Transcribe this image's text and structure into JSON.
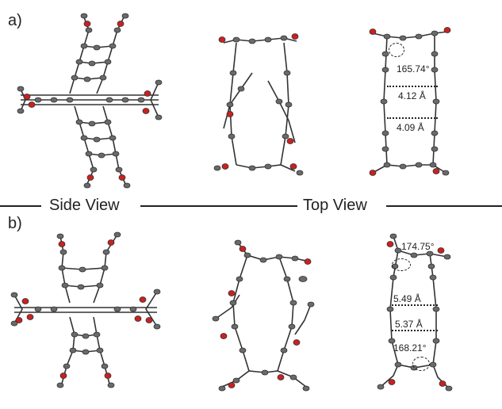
{
  "panels": {
    "a": {
      "label": "a)"
    },
    "b": {
      "label": "b)"
    }
  },
  "views": {
    "side": "Side View",
    "top": "Top View"
  },
  "measurements": {
    "a": {
      "angle": "165.74°",
      "distance_1": "4.12 Å",
      "distance_2": "4.09 Å"
    },
    "b": {
      "angle_top": "174.75°",
      "distance_1": "5.49 Å",
      "distance_2": "5.37 Å",
      "angle_bottom": "168.21°"
    }
  },
  "colors": {
    "carbon": "#6a6a6a",
    "oxygen": "#cc2020",
    "bond": "#333333"
  }
}
